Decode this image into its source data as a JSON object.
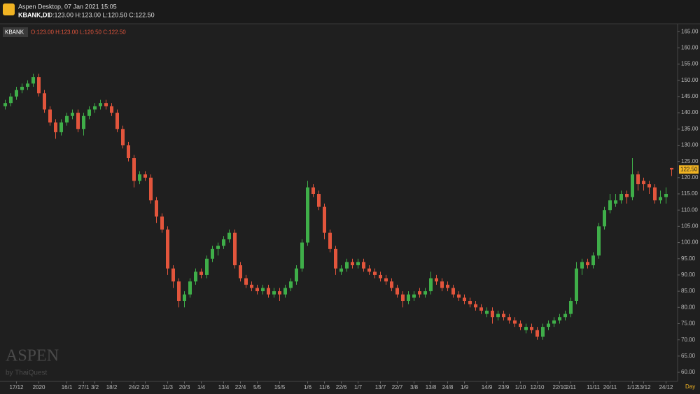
{
  "header": {
    "app_title": "Aspen Desktop, 07 Jan 2021 15:05",
    "symbol": "KBANK,D1",
    "ohlc_text": "O:123.00 H:123.00 L:120.50 C:122.50"
  },
  "chart_data": {
    "type": "candlestick",
    "symbol_badge": "KBANK",
    "legend_text": "O:123.00 H:123.00 L:120.50 C:122.50",
    "watermark": "ASPEN",
    "watermark_sub": "by ThaiQuest",
    "x_unit": "Day",
    "up_color": "#3fae49",
    "down_color": "#e2553c",
    "grid": false,
    "categories": [
      null,
      null,
      "17/12",
      null,
      null,
      null,
      "2020",
      null,
      null,
      null,
      null,
      "16/1",
      null,
      null,
      "27/1",
      null,
      "3/2",
      null,
      null,
      "18/2",
      null,
      null,
      null,
      "24/2",
      null,
      "2/3",
      null,
      null,
      null,
      "11/3",
      null,
      null,
      "20/3",
      null,
      null,
      "1/4",
      null,
      null,
      null,
      "13/4",
      null,
      null,
      "22/4",
      null,
      null,
      "5/5",
      null,
      null,
      null,
      "15/5",
      null,
      null,
      null,
      null,
      "1/6",
      null,
      null,
      "11/6",
      null,
      null,
      "22/6",
      null,
      null,
      "1/7",
      null,
      null,
      null,
      "13/7",
      null,
      null,
      "22/7",
      null,
      null,
      "3/8",
      null,
      null,
      "13/8",
      null,
      null,
      "24/8",
      null,
      null,
      "1/9",
      null,
      null,
      null,
      "14/9",
      null,
      null,
      "23/9",
      null,
      null,
      "1/10",
      null,
      null,
      "12/10",
      null,
      null,
      null,
      "22/10",
      null,
      "2/11",
      null,
      null,
      null,
      "11/11",
      null,
      null,
      "20/11",
      null,
      null,
      null,
      "1/12",
      null,
      "13/12",
      null,
      null,
      null,
      "24/12",
      null
    ],
    "open": [
      142,
      143,
      145,
      147,
      148,
      149,
      151,
      146,
      141,
      137,
      134,
      137,
      139,
      140,
      135,
      139,
      141,
      142,
      143,
      142,
      140,
      135,
      130,
      126,
      119,
      121,
      120,
      113,
      108,
      104,
      92,
      88,
      82,
      84,
      88,
      91,
      90,
      95,
      98,
      99,
      101,
      103,
      93,
      89,
      87,
      86,
      85,
      86,
      84,
      85,
      84,
      86,
      88,
      92,
      100,
      117,
      115,
      111,
      103,
      98,
      91,
      92,
      94,
      93,
      94,
      92,
      91,
      90,
      89,
      88,
      86,
      84,
      82,
      83,
      85,
      84,
      85,
      89,
      88,
      87,
      86,
      84,
      83,
      82,
      81,
      80,
      78,
      79,
      77,
      78,
      77,
      76,
      75,
      73,
      74,
      73,
      71,
      74,
      75,
      76,
      77,
      78,
      82,
      92,
      94,
      93,
      96,
      105,
      110,
      112,
      113,
      115,
      114,
      121,
      119,
      118,
      117,
      113,
      114,
      123
    ],
    "high": [
      144,
      146,
      148,
      149,
      150,
      152,
      152,
      147,
      142,
      138,
      138,
      140,
      141,
      141,
      140,
      142,
      143,
      144,
      144,
      143,
      141,
      136,
      131,
      127,
      122,
      122,
      121,
      114,
      109,
      105,
      93,
      89,
      85,
      89,
      92,
      92,
      96,
      99,
      100,
      102,
      104,
      104,
      94,
      90,
      88,
      87,
      87,
      87,
      86,
      86,
      87,
      89,
      93,
      101,
      119,
      118,
      116,
      112,
      104,
      99,
      93,
      95,
      95,
      95,
      95,
      93,
      92,
      91,
      90,
      89,
      87,
      85,
      85,
      85,
      86,
      86,
      91,
      90,
      89,
      88,
      87,
      85,
      84,
      83,
      82,
      81,
      80,
      80,
      79,
      79,
      78,
      77,
      76,
      75,
      75,
      74,
      75,
      76,
      77,
      78,
      79,
      83,
      94,
      95,
      95,
      97,
      106,
      111,
      115,
      115,
      116,
      116,
      126,
      122,
      120,
      119,
      118,
      116,
      117,
      123
    ],
    "low": [
      141,
      142,
      144,
      146,
      147,
      148,
      145,
      140,
      136,
      132,
      133,
      136,
      138,
      134,
      133,
      138,
      140,
      141,
      141,
      139,
      134,
      129,
      125,
      117,
      118,
      119,
      112,
      106,
      103,
      90,
      86,
      80,
      80,
      83,
      87,
      89,
      89,
      94,
      96,
      98,
      100,
      92,
      88,
      86,
      85,
      84,
      84,
      83,
      83,
      82,
      83,
      85,
      87,
      91,
      99,
      114,
      110,
      101,
      97,
      90,
      90,
      91,
      92,
      92,
      91,
      90,
      89,
      88,
      87,
      85,
      83,
      80,
      81,
      82,
      83,
      83,
      84,
      87,
      85,
      85,
      83,
      82,
      81,
      80,
      79,
      78,
      77,
      75,
      76,
      76,
      75,
      74,
      73,
      72,
      72,
      70,
      70,
      73,
      74,
      75,
      76,
      77,
      81,
      90,
      92,
      92,
      95,
      104,
      109,
      111,
      112,
      112,
      113,
      116,
      116,
      115,
      112,
      112,
      112,
      120.5
    ],
    "close": [
      143,
      145,
      147,
      148,
      149,
      151,
      146,
      141,
      137,
      134,
      137,
      139,
      140,
      135,
      139,
      141,
      142,
      143,
      142,
      140,
      135,
      130,
      126,
      119,
      121,
      120,
      113,
      108,
      104,
      92,
      88,
      82,
      84,
      88,
      91,
      90,
      95,
      98,
      99,
      101,
      103,
      93,
      89,
      87,
      86,
      85,
      86,
      84,
      85,
      84,
      86,
      88,
      92,
      100,
      117,
      115,
      111,
      103,
      98,
      92,
      92,
      94,
      93,
      94,
      92,
      91,
      90,
      89,
      88,
      86,
      84,
      82,
      84,
      84,
      84,
      85,
      89,
      88,
      86,
      86,
      84,
      83,
      82,
      81,
      80,
      79,
      79,
      77,
      78,
      77,
      76,
      75,
      74,
      74,
      73,
      71,
      74,
      75,
      76,
      77,
      78,
      82,
      92,
      94,
      93,
      96,
      105,
      110,
      113,
      113,
      115,
      114,
      121,
      118,
      118,
      117,
      113,
      114,
      115,
      122.5
    ],
    "last_price": {
      "value": 122.5,
      "label": "122.50"
    },
    "ylim": [
      57.2,
      167.2
    ],
    "yticks": [
      {
        "value": 60,
        "label": "60.00"
      },
      {
        "value": 65,
        "label": "65.00"
      },
      {
        "value": 70,
        "label": "70.00"
      },
      {
        "value": 75,
        "label": "75.00"
      },
      {
        "value": 80,
        "label": "80.00"
      },
      {
        "value": 85,
        "label": "85.00"
      },
      {
        "value": 90,
        "label": "90.00"
      },
      {
        "value": 95,
        "label": "95.00"
      },
      {
        "value": 100,
        "label": "100.00"
      },
      {
        "value": 105,
        "label": "105.00"
      },
      {
        "value": 110,
        "label": "110.00"
      },
      {
        "value": 115,
        "label": "115.00"
      },
      {
        "value": 120,
        "label": "120.00"
      },
      {
        "value": 125,
        "label": "125.00"
      },
      {
        "value": 130,
        "label": "130.00"
      },
      {
        "value": 135,
        "label": "135.00"
      },
      {
        "value": 140,
        "label": "140.00"
      },
      {
        "value": 145,
        "label": "145.00"
      },
      {
        "value": 150,
        "label": "150.00"
      },
      {
        "value": 155,
        "label": "155.00"
      },
      {
        "value": 160,
        "label": "160.00"
      },
      {
        "value": 165,
        "label": "165.00"
      }
    ]
  }
}
